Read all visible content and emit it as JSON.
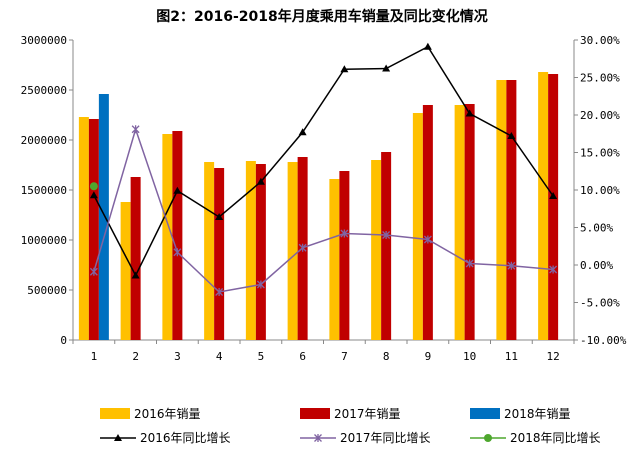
{
  "chart_data": {
    "type": "bar",
    "title": "图2：2016-2018年月度乘用车销量及同比变化情况",
    "categories": [
      "1",
      "2",
      "3",
      "4",
      "5",
      "6",
      "7",
      "8",
      "9",
      "10",
      "11",
      "12"
    ],
    "y_left": {
      "min": 0,
      "max": 3000000,
      "step": 500000,
      "ticks": [
        "0",
        "500000",
        "1000000",
        "1500000",
        "2000000",
        "2500000",
        "3000000"
      ]
    },
    "y_right": {
      "min": -10,
      "max": 30,
      "step": 5,
      "ticks": [
        "-10.00%",
        "-5.00%",
        "0.00%",
        "5.00%",
        "10.00%",
        "15.00%",
        "20.00%",
        "25.00%",
        "30.00%"
      ]
    },
    "bar_series": [
      {
        "name": "2016年销量",
        "color": "#FFC000",
        "values": [
          2230000,
          1380000,
          2060000,
          1780000,
          1790000,
          1780000,
          1610000,
          1800000,
          2270000,
          2350000,
          2600000,
          2680000
        ]
      },
      {
        "name": "2017年销量",
        "color": "#C00000",
        "values": [
          2210000,
          1630000,
          2090000,
          1720000,
          1760000,
          1830000,
          1690000,
          1880000,
          2350000,
          2360000,
          2600000,
          2660000
        ]
      },
      {
        "name": "2018年销量",
        "color": "#0070C0",
        "values": [
          2460000,
          null,
          null,
          null,
          null,
          null,
          null,
          null,
          null,
          null,
          null,
          null
        ]
      }
    ],
    "line_series": [
      {
        "name": "2016年同比增长",
        "color": "#000000",
        "marker": "triangle",
        "values": [
          9.3,
          -1.4,
          9.9,
          6.4,
          11.1,
          17.7,
          26.1,
          26.2,
          29.1,
          20.2,
          17.2,
          9.2
        ]
      },
      {
        "name": "2017年同比增长",
        "color": "#8064A2",
        "marker": "star",
        "values": [
          -0.9,
          18.1,
          1.7,
          -3.6,
          -2.6,
          2.3,
          4.2,
          4.0,
          3.4,
          0.2,
          -0.1,
          -0.6
        ]
      },
      {
        "name": "2018年同比增长",
        "color": "#4EA72E",
        "marker": "circle",
        "values": [
          10.5,
          null,
          null,
          null,
          null,
          null,
          null,
          null,
          null,
          null,
          null,
          null
        ]
      }
    ],
    "legend_position": "bottom",
    "grid": false
  }
}
